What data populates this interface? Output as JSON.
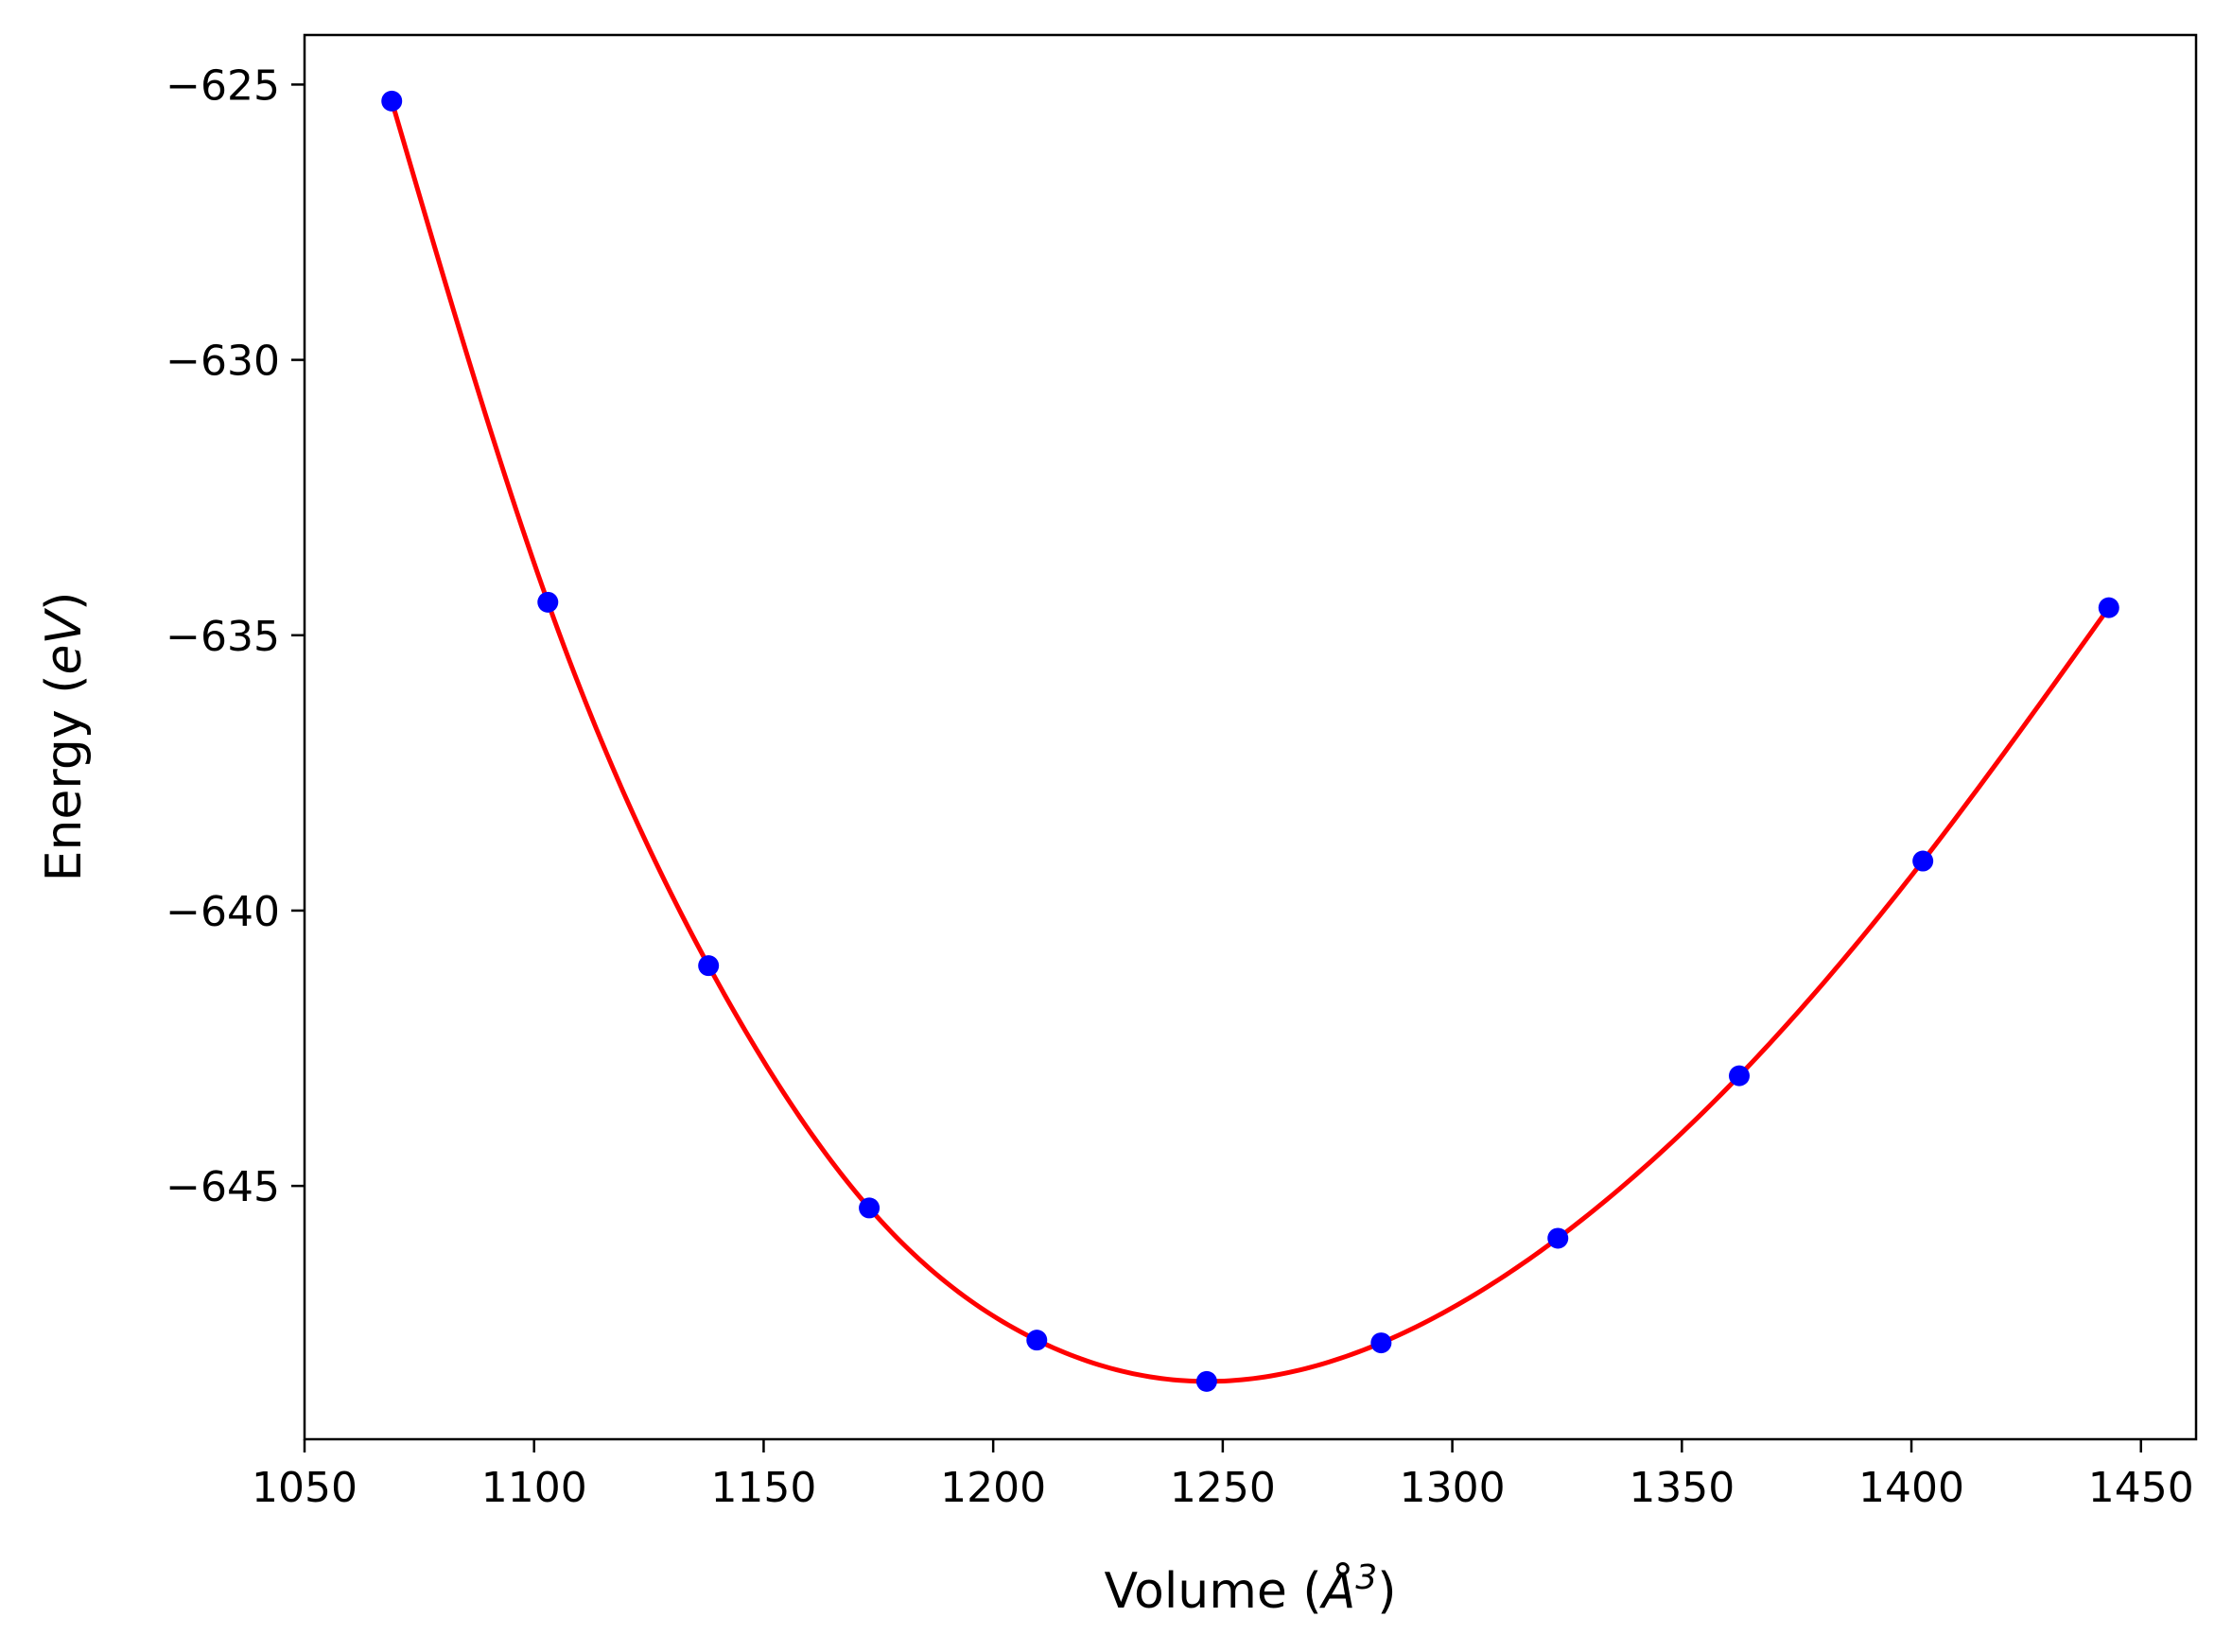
{
  "chart_data": {
    "type": "line",
    "title": "",
    "xlabel": {
      "prefix": "Volume (",
      "italic": "Å",
      "sup": "3",
      "suffix": ")"
    },
    "ylabel": {
      "prefix": "Energy (",
      "italic": "eV",
      "suffix": ")"
    },
    "xlim": [
      1050,
      1462
    ],
    "ylim": [
      -649.6,
      -624.1
    ],
    "xticks": [
      1050,
      1100,
      1150,
      1200,
      1250,
      1300,
      1350,
      1400,
      1450
    ],
    "yticks": [
      -625,
      -630,
      -635,
      -640,
      -645
    ],
    "xtick_labels": [
      "1050",
      "1100",
      "1150",
      "1200",
      "1250",
      "1300",
      "1350",
      "1400",
      "1450"
    ],
    "ytick_labels": [
      "−625",
      "−630",
      "−635",
      "−640",
      "−645"
    ],
    "grid": false,
    "series": [
      {
        "kind": "scatter",
        "color": "#0000ff",
        "points": [
          {
            "x": 1069,
            "y": -625.3
          },
          {
            "x": 1103,
            "y": -634.4
          },
          {
            "x": 1138,
            "y": -641.0
          },
          {
            "x": 1173,
            "y": -645.4
          },
          {
            "x": 1209.5,
            "y": -647.8
          },
          {
            "x": 1246.5,
            "y": -648.55
          },
          {
            "x": 1284.5,
            "y": -647.85
          },
          {
            "x": 1323,
            "y": -645.95
          },
          {
            "x": 1362.5,
            "y": -643.0
          },
          {
            "x": 1402.5,
            "y": -639.1
          },
          {
            "x": 1443,
            "y": -634.5
          }
        ]
      },
      {
        "kind": "line",
        "color": "#ff0000",
        "fit": "cubic-spline-through-points"
      }
    ]
  }
}
